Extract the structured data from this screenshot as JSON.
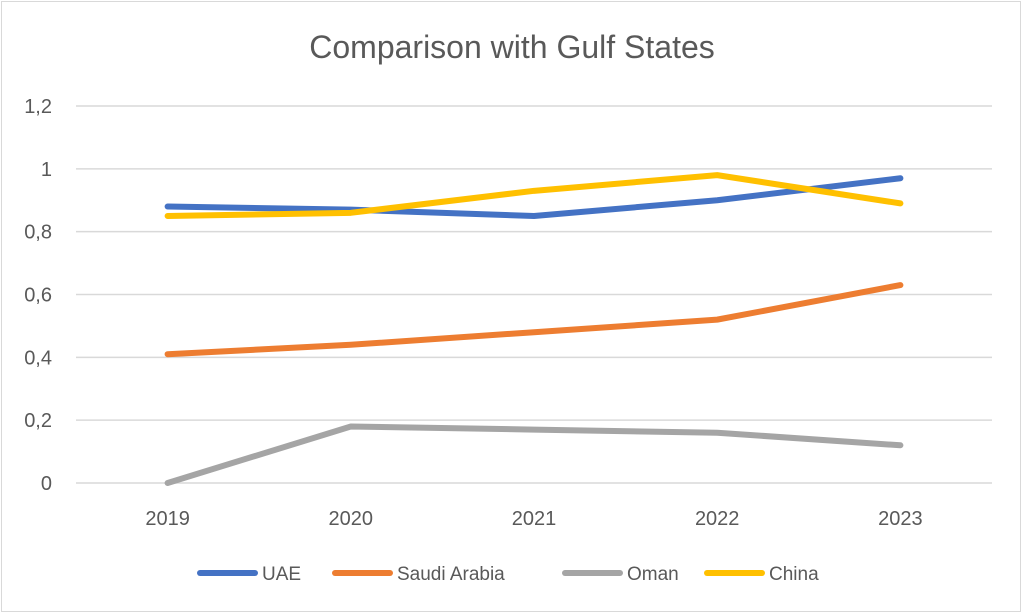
{
  "chart_data": {
    "type": "line",
    "title": "Comparison with Gulf States",
    "xlabel": "",
    "ylabel": "",
    "categories": [
      "2019",
      "2020",
      "2021",
      "2022",
      "2023"
    ],
    "ylim": [
      0,
      1.2
    ],
    "yticks": [
      0,
      0.2,
      0.4,
      0.6,
      0.8,
      1,
      1.2
    ],
    "ytick_labels": [
      "0",
      "0,2",
      "0,4",
      "0,6",
      "0,8",
      "1",
      "1,2"
    ],
    "grid": true,
    "legend_position": "bottom",
    "series": [
      {
        "name": "UAE",
        "color": "#4472c4",
        "values": [
          0.88,
          0.87,
          0.85,
          0.9,
          0.97
        ]
      },
      {
        "name": "Saudi Arabia",
        "color": "#ed7d31",
        "values": [
          0.41,
          0.44,
          0.48,
          0.52,
          0.63
        ]
      },
      {
        "name": "Oman",
        "color": "#a5a5a5",
        "values": [
          0,
          0.18,
          0.17,
          0.16,
          0.12
        ]
      },
      {
        "name": "China",
        "color": "#ffc000",
        "values": [
          0.85,
          0.86,
          0.93,
          0.98,
          0.89
        ]
      }
    ]
  }
}
